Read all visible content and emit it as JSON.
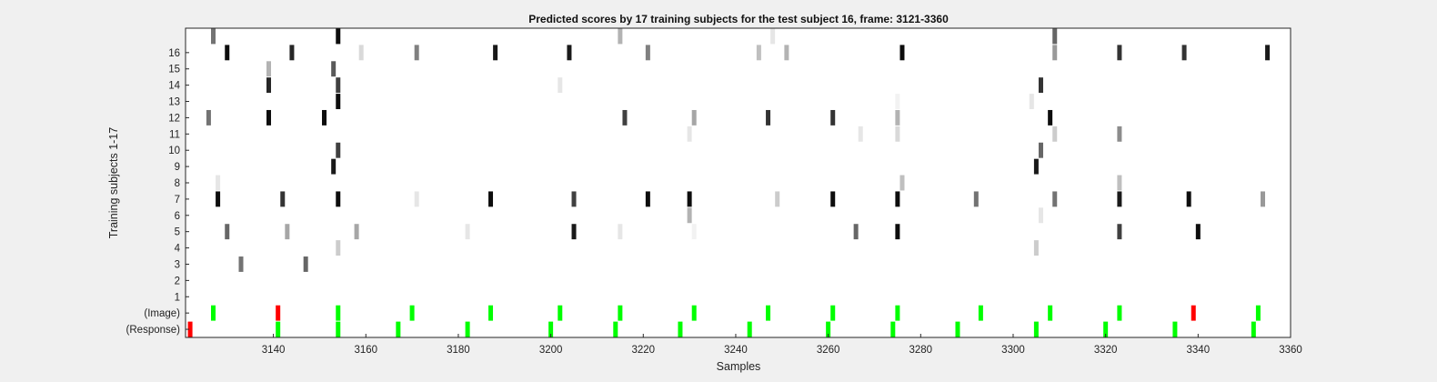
{
  "chart_data": {
    "type": "heatmap",
    "title": "Predicted scores by 17 training subjects for the test subject 16, frame: 3121-3360",
    "xlabel": "Samples",
    "ylabel": "Training subjects 1-17",
    "xlim": [
      3121,
      3360
    ],
    "x_ticks": [
      3140,
      3160,
      3180,
      3200,
      3220,
      3240,
      3260,
      3280,
      3300,
      3320,
      3340,
      3360
    ],
    "y_rows": [
      "(Response)",
      "(Image)",
      "1",
      "2",
      "3",
      "4",
      "5",
      "6",
      "7",
      "8",
      "9",
      "10",
      "11",
      "12",
      "13",
      "14",
      "15",
      "16",
      "17"
    ],
    "y_tick_labels": [
      "(Response)",
      "(Image)",
      "1",
      "2",
      "3",
      "4",
      "5",
      "6",
      "7",
      "8",
      "9",
      "10",
      "11",
      "12",
      "13",
      "14",
      "15",
      "16"
    ],
    "colors": {
      "correct": "#00ff00",
      "error": "#ff0000",
      "background": "#ffffff"
    },
    "response_events": [
      {
        "x": 3122,
        "status": "error"
      },
      {
        "x": 3141,
        "status": "correct"
      },
      {
        "x": 3154,
        "status": "correct"
      },
      {
        "x": 3167,
        "status": "correct"
      },
      {
        "x": 3182,
        "status": "correct"
      },
      {
        "x": 3200,
        "status": "correct"
      },
      {
        "x": 3214,
        "status": "correct"
      },
      {
        "x": 3228,
        "status": "correct"
      },
      {
        "x": 3243,
        "status": "correct"
      },
      {
        "x": 3260,
        "status": "correct"
      },
      {
        "x": 3274,
        "status": "correct"
      },
      {
        "x": 3288,
        "status": "correct"
      },
      {
        "x": 3305,
        "status": "correct"
      },
      {
        "x": 3320,
        "status": "correct"
      },
      {
        "x": 3335,
        "status": "correct"
      },
      {
        "x": 3352,
        "status": "correct"
      }
    ],
    "image_events": [
      {
        "x": 3127,
        "status": "correct"
      },
      {
        "x": 3141,
        "status": "error"
      },
      {
        "x": 3154,
        "status": "correct"
      },
      {
        "x": 3170,
        "status": "correct"
      },
      {
        "x": 3187,
        "status": "correct"
      },
      {
        "x": 3202,
        "status": "correct"
      },
      {
        "x": 3215,
        "status": "correct"
      },
      {
        "x": 3231,
        "status": "correct"
      },
      {
        "x": 3247,
        "status": "correct"
      },
      {
        "x": 3261,
        "status": "correct"
      },
      {
        "x": 3275,
        "status": "correct"
      },
      {
        "x": 3293,
        "status": "correct"
      },
      {
        "x": 3308,
        "status": "correct"
      },
      {
        "x": 3323,
        "status": "correct"
      },
      {
        "x": 3339,
        "status": "error"
      },
      {
        "x": 3353,
        "status": "correct"
      }
    ],
    "scores": [
      {
        "subject": 3,
        "points": [
          [
            3133,
            0.55
          ],
          [
            3147,
            0.6
          ]
        ]
      },
      {
        "subject": 4,
        "points": [
          [
            3154,
            0.2
          ],
          [
            3305,
            0.2
          ]
        ]
      },
      {
        "subject": 5,
        "points": [
          [
            3130,
            0.6
          ],
          [
            3143,
            0.35
          ],
          [
            3158,
            0.35
          ],
          [
            3182,
            0.1
          ],
          [
            3205,
            0.9
          ],
          [
            3215,
            0.1
          ],
          [
            3231,
            0.05
          ],
          [
            3266,
            0.6
          ],
          [
            3275,
            0.95
          ],
          [
            3323,
            0.75
          ],
          [
            3340,
            0.95
          ]
        ]
      },
      {
        "subject": 6,
        "points": [
          [
            3230,
            0.3
          ],
          [
            3306,
            0.1
          ]
        ]
      },
      {
        "subject": 7,
        "points": [
          [
            3128,
            0.95
          ],
          [
            3142,
            0.8
          ],
          [
            3154,
            0.95
          ],
          [
            3171,
            0.1
          ],
          [
            3187,
            0.95
          ],
          [
            3205,
            0.75
          ],
          [
            3221,
            0.95
          ],
          [
            3230,
            0.95
          ],
          [
            3249,
            0.2
          ],
          [
            3261,
            0.95
          ],
          [
            3275,
            0.95
          ],
          [
            3292,
            0.55
          ],
          [
            3309,
            0.55
          ],
          [
            3323,
            0.9
          ],
          [
            3338,
            0.95
          ],
          [
            3354,
            0.4
          ]
        ]
      },
      {
        "subject": 8,
        "points": [
          [
            3128,
            0.1
          ],
          [
            3276,
            0.25
          ],
          [
            3323,
            0.25
          ]
        ]
      },
      {
        "subject": 9,
        "points": [
          [
            3153,
            0.9
          ],
          [
            3305,
            0.9
          ]
        ]
      },
      {
        "subject": 10,
        "points": [
          [
            3154,
            0.75
          ],
          [
            3306,
            0.6
          ]
        ]
      },
      {
        "subject": 11,
        "points": [
          [
            3230,
            0.1
          ],
          [
            3267,
            0.1
          ],
          [
            3275,
            0.15
          ],
          [
            3309,
            0.2
          ],
          [
            3323,
            0.45
          ]
        ]
      },
      {
        "subject": 12,
        "points": [
          [
            3126,
            0.55
          ],
          [
            3139,
            0.95
          ],
          [
            3151,
            0.95
          ],
          [
            3216,
            0.75
          ],
          [
            3231,
            0.35
          ],
          [
            3247,
            0.8
          ],
          [
            3261,
            0.8
          ],
          [
            3275,
            0.3
          ],
          [
            3308,
            0.95
          ]
        ]
      },
      {
        "subject": 13,
        "points": [
          [
            3154,
            0.95
          ],
          [
            3304,
            0.1
          ],
          [
            3275,
            0.05
          ]
        ]
      },
      {
        "subject": 14,
        "points": [
          [
            3139,
            0.85
          ],
          [
            3154,
            0.75
          ],
          [
            3202,
            0.1
          ],
          [
            3306,
            0.8
          ]
        ]
      },
      {
        "subject": 15,
        "points": [
          [
            3139,
            0.3
          ],
          [
            3153,
            0.65
          ]
        ]
      },
      {
        "subject": 16,
        "points": [
          [
            3130,
            0.95
          ],
          [
            3144,
            0.85
          ],
          [
            3159,
            0.15
          ],
          [
            3171,
            0.5
          ],
          [
            3188,
            0.9
          ],
          [
            3204,
            0.9
          ],
          [
            3221,
            0.5
          ],
          [
            3245,
            0.25
          ],
          [
            3251,
            0.3
          ],
          [
            3276,
            0.95
          ],
          [
            3309,
            0.4
          ],
          [
            3323,
            0.8
          ],
          [
            3337,
            0.8
          ],
          [
            3355,
            0.9
          ]
        ]
      },
      {
        "subject": 17,
        "points": [
          [
            3127,
            0.55
          ],
          [
            3154,
            0.95
          ],
          [
            3215,
            0.3
          ],
          [
            3248,
            0.1
          ],
          [
            3309,
            0.6
          ]
        ]
      }
    ]
  }
}
